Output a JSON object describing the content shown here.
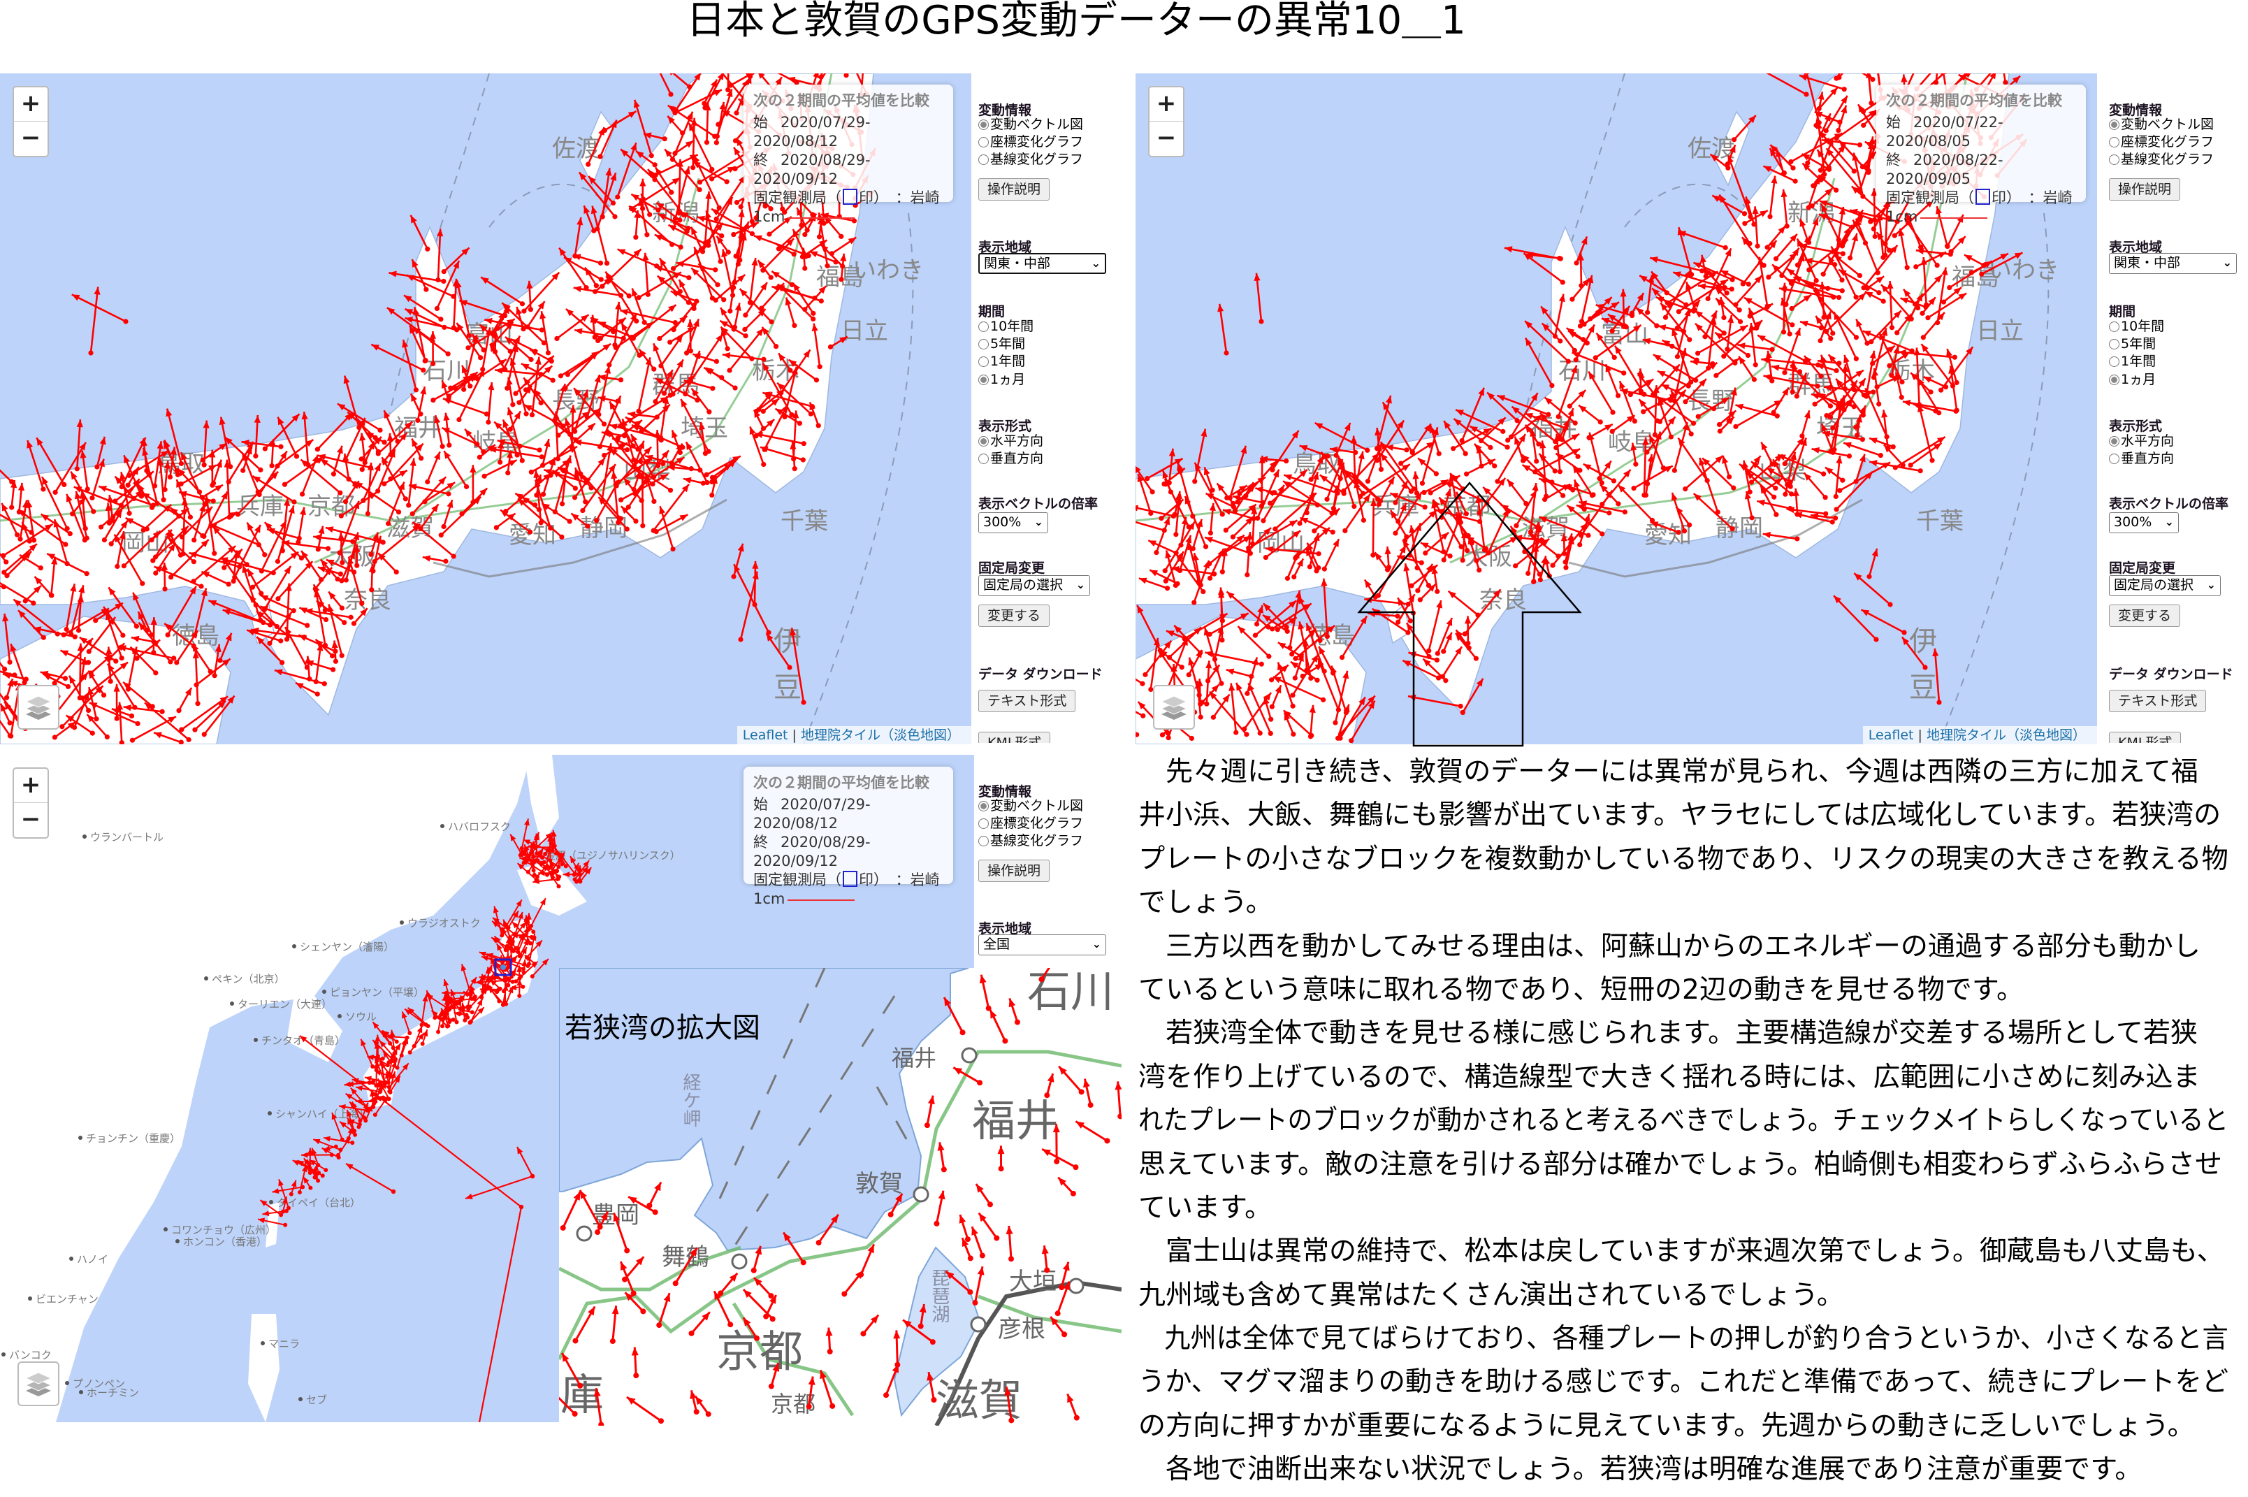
{
  "title": "日本と敦賀のGPS変動データーの異常10＿1",
  "colors": {
    "sea": "#bdd3fa",
    "land": "#ffffff",
    "vector": "#ff0000",
    "fixed_station_mark": "#2222cc",
    "road": "#6ab86a"
  },
  "panels": {
    "top_left": {
      "info": {
        "heading": "次の２期間の平均値を比較",
        "start_label": "始",
        "start": "2020/07/29-2020/08/12",
        "end_label": "終",
        "end": "2020/08/29-2020/09/12",
        "fixed_prefix": "固定観測局（",
        "fixed_suffix": "印）　：岩崎",
        "scale_label": "1cm"
      },
      "region": "関東・中部"
    },
    "top_right": {
      "info": {
        "heading": "次の２期間の平均値を比較",
        "start_label": "始",
        "start": "2020/07/22-2020/08/05",
        "end_label": "終",
        "end": "2020/08/22-2020/09/05",
        "fixed_prefix": "固定観測局（",
        "fixed_suffix": "印）　：岩崎",
        "scale_label": "1cm"
      },
      "region": "関東・中部"
    },
    "bottom_left": {
      "info": {
        "heading": "次の２期間の平均値を比較",
        "start_label": "始",
        "start": "2020/07/29-2020/08/12",
        "end_label": "終",
        "end": "2020/08/29-2020/09/12",
        "fixed_prefix": "固定観測局（",
        "fixed_suffix": "印）　：岩崎",
        "scale_label": "1cm"
      },
      "region": "全国"
    }
  },
  "map_controls": {
    "zoom_in": "+",
    "zoom_out": "−",
    "layers_icon": "layers-icon"
  },
  "attribution": {
    "leaflet": "Leaflet",
    "separator": " | ",
    "tiles": "地理院タイル（淡色地図）"
  },
  "sidebar": {
    "variation_heading": "変動情報",
    "variation_options": [
      "変動ベクトル図",
      "座標変化グラフ",
      "基線変化グラフ"
    ],
    "variation_selected": 0,
    "help_button": "操作説明",
    "region_heading": "表示地域",
    "period_heading": "期間",
    "period_options": [
      "10年間",
      "5年間",
      "1年間",
      "1ヵ月"
    ],
    "period_selected": 3,
    "format_heading": "表示形式",
    "format_options": [
      "水平方向",
      "垂直方向"
    ],
    "format_selected": 0,
    "scale_heading": "表示ベクトルの倍率",
    "scale_value": "300%",
    "fixed_heading": "固定局変更",
    "fixed_select": "固定局の選択",
    "change_button": "変更する",
    "download_heading": "データ ダウンロード",
    "text_button": "テキスト形式",
    "kml_button": "KML形式"
  },
  "japan_map_labels": [
    "佐渡",
    "新潟",
    "福島",
    "栃木",
    "群馬",
    "富山",
    "石川",
    "福井",
    "岐阜",
    "長野",
    "山梨",
    "埼玉",
    "千葉",
    "静岡",
    "愛知",
    "滋賀",
    "京都",
    "兵庫",
    "大阪",
    "奈良",
    "鳥取",
    "岡山",
    "徳島",
    "日立",
    "いわき",
    "伊",
    "豆"
  ],
  "asia_map_labels": [
    "ウランバートル",
    "ハバロフスク",
    "豊原（ユジノサハリンスク）",
    "ウラジオストク",
    "シェンヤン（瀋陽）",
    "ペキン（北京）",
    "ピョンヤン（平壌）",
    "ターリエン（大連）",
    "ソウル",
    "チンタオ（青島）",
    "シャンハイ（上海）",
    "チョンチン（重慶）",
    "タイペイ（台北）",
    "コワンチョウ（広州）",
    "ホンコン（香港）",
    "ハノイ",
    "ビエンチャン",
    "バンコク",
    "マニラ",
    "プノンペン",
    "ホーチミン",
    "セブ"
  ],
  "inset": {
    "caption": "若狭湾の拡大図",
    "labels": [
      "経ケ岬",
      "福井",
      "福井",
      "石川",
      "敦賀",
      "豊岡",
      "舞鶴",
      "京都",
      "兵庫",
      "京都",
      "大垣",
      "彦根",
      "滋賀",
      "琵琶湖"
    ]
  },
  "article": {
    "paragraphs": [
      [
        "　先々週に引き続き、敦賀のデーターには異常が見られ、今週は西隣の三方に加えて福",
        "井小浜、大飯、舞鶴にも影響が出ています。ヤラセにしては広域化しています。若狭湾の",
        "プレートの小さなブロックを複数動かしている物であり、リスクの現実の大きさを教える物",
        "でしょう。"
      ],
      [
        "　三方以西を動かしてみせる理由は、阿蘇山からのエネルギーの通過する部分も動かし",
        "ているという意味に取れる物であり、短冊の2辺の動きを見せる物です。"
      ],
      [
        "　若狭湾全体で動きを見せる様に感じられます。主要構造線が交差する場所として若狭",
        "湾を作り上げているので、構造線型で大きく揺れる時には、広範囲に小さめに刻み込ま",
        "れたプレートのブロックが動かされると考えるべきでしょう。チェックメイトらしくなっていると",
        "思えています。敵の注意を引ける部分は確かでしょう。柏崎側も相変わらずふらふらさせ",
        "ています。"
      ],
      [
        "　富士山は異常の維持で、松本は戻していますが来週次第でしょう。御蔵島も八丈島も、",
        "九州域も含めて異常はたくさん演出されているでしょう。"
      ],
      [
        "　九州は全体で見てばらけており、各種プレートの押しが釣り合うというか、小さくなると言",
        "うか、マグマ溜まりの動きを助ける感じです。これだと準備であって、続きにプレートをど",
        "の方向に押すかが重要になるように見えています。先週からの動きに乏しいでしょう。"
      ],
      [
        "　各地で油断出来ない状況でしょう。若狭湾は明確な進展であり注意が重要です。"
      ]
    ]
  }
}
